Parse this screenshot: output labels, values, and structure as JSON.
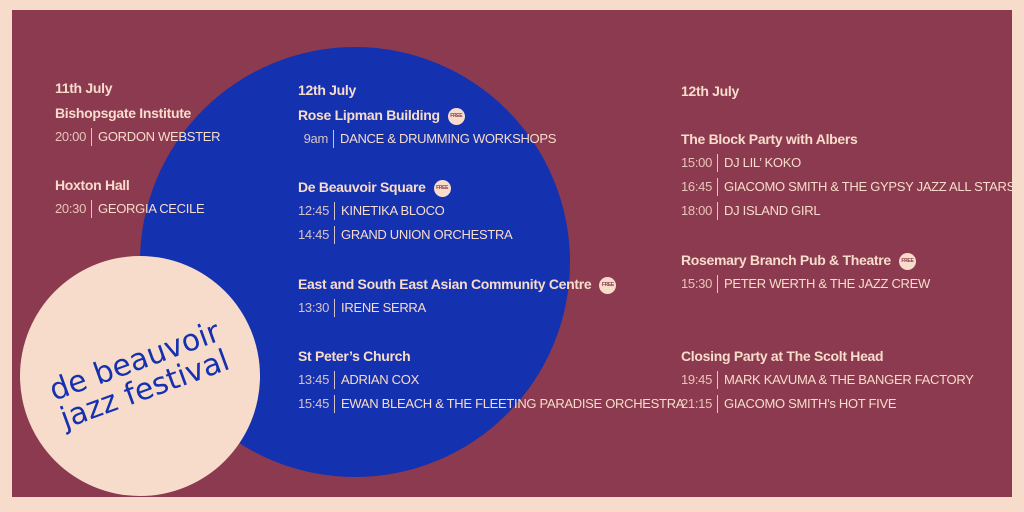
{
  "logo": {
    "line1": "de beauvoir",
    "line2": "jazz festival"
  },
  "columns": [
    {
      "date": "11th July",
      "venues": [
        {
          "name": "Bishopsgate Institute",
          "events": [
            {
              "time": "20:00",
              "act": "GORDON WEBSTER"
            }
          ]
        },
        {
          "name": "Hoxton Hall",
          "events": [
            {
              "time": "20:30",
              "act": "GEORGIA CECILE"
            }
          ]
        }
      ]
    },
    {
      "date": "12th July",
      "venues": [
        {
          "name": "Rose Lipman Building",
          "badge": "FREE",
          "events": [
            {
              "time": "9am",
              "act": "DANCE & DRUMMING  WORKSHOPS"
            }
          ]
        },
        {
          "name": "De Beauvoir Square",
          "badge": "FREE",
          "events": [
            {
              "time": "12:45",
              "act": "KINETIKA BLOCO"
            },
            {
              "time": "14:45",
              "act": "GRAND UNION ORCHESTRA"
            }
          ]
        },
        {
          "name": "East and South East Asian Community Centre",
          "badge": "FREE",
          "events": [
            {
              "time": "13:30",
              "act": "IRENE SERRA"
            }
          ]
        },
        {
          "name": "St Peter’s Church",
          "events": [
            {
              "time": "13:45",
              "act": "ADRIAN COX"
            },
            {
              "time": "15:45",
              "act": "EWAN BLEACH  & THE FLEETING PARADISE ORCHESTRA"
            }
          ]
        }
      ]
    },
    {
      "date": "12th July",
      "venues": [
        {
          "name": "The Block Party with Albers",
          "events": [
            {
              "time": "15:00",
              "act": "DJ LIL’ KOKO"
            },
            {
              "time": "16:45",
              "act": "GIACOMO SMITH & THE GYPSY JAZZ ALL STARS"
            },
            {
              "time": "18:00",
              "act": "DJ ISLAND GIRL"
            }
          ]
        },
        {
          "name": "Rosemary Branch Pub & Theatre",
          "badge": "FREE",
          "events": [
            {
              "time": "15:30",
              "act": "PETER WERTH & THE JAZZ CREW"
            }
          ]
        },
        {
          "name": "Closing Party at The Scolt Head",
          "events": [
            {
              "time": "19:45",
              "act": "MARK KAVUMA & THE BANGER FACTORY"
            },
            {
              "time": "21:15",
              "act": "GIACOMO SMITH’s HOT FIVE"
            }
          ]
        }
      ]
    }
  ]
}
